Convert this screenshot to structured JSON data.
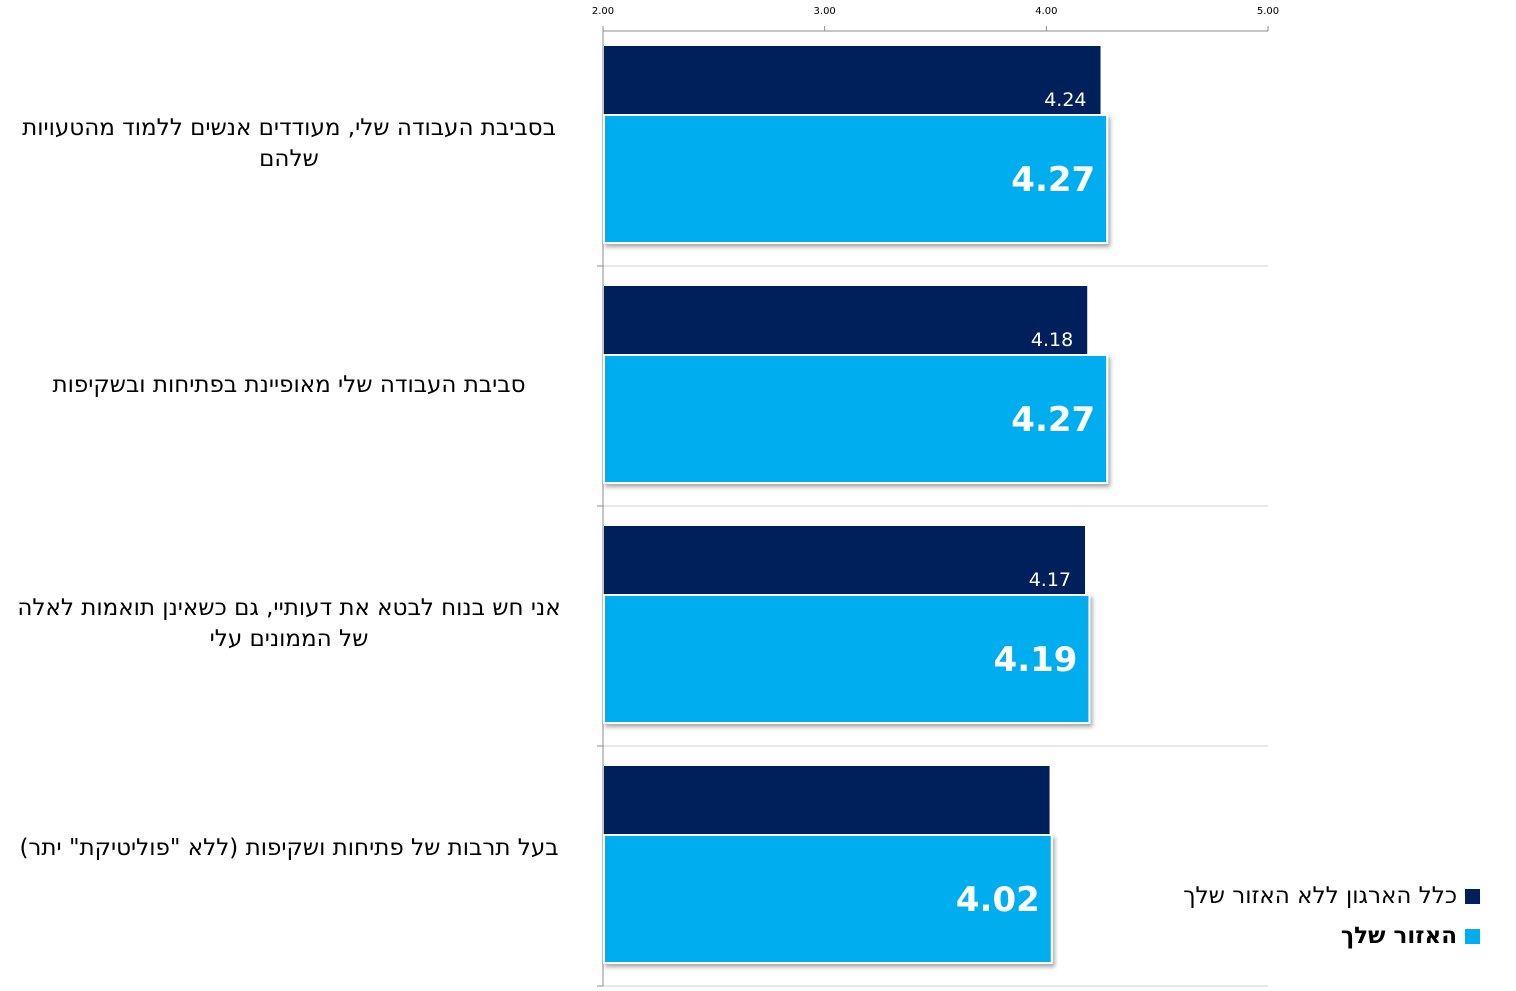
{
  "chart_data": {
    "type": "bar",
    "orientation": "horizontal",
    "xlim": [
      2.0,
      5.0
    ],
    "x_ticks": [
      "2.00",
      "3.00",
      "4.00",
      "5.00"
    ],
    "legend_position": "bottom-right",
    "grid": true,
    "categories": [
      "בסביבת העבודה שלי, מעודדים אנשים ללמוד מהטעויות שלהם",
      "סביבת העבודה שלי מאופיינת בפתיחות ובשקיפות",
      "אני חש בנוח לבטא את דעותיי, גם כשאינן תואמות לאלה של הממונים עלי",
      "בעל תרבות של פתיחות ושקיפות (ללא \"פוליטיקת\" יתר)"
    ],
    "series": [
      {
        "name": "כלל הארגון ללא האזור שלך",
        "color": "#00205B",
        "values": [
          4.24,
          4.18,
          4.17,
          4.01
        ],
        "labels": [
          "4.24",
          "4.18",
          "4.17",
          ""
        ]
      },
      {
        "name": "האזור שלך",
        "color": "#00AEEF",
        "values": [
          4.27,
          4.27,
          4.19,
          4.02
        ],
        "labels": [
          "4.27",
          "4.27",
          "4.19",
          "4.02"
        ]
      }
    ]
  }
}
